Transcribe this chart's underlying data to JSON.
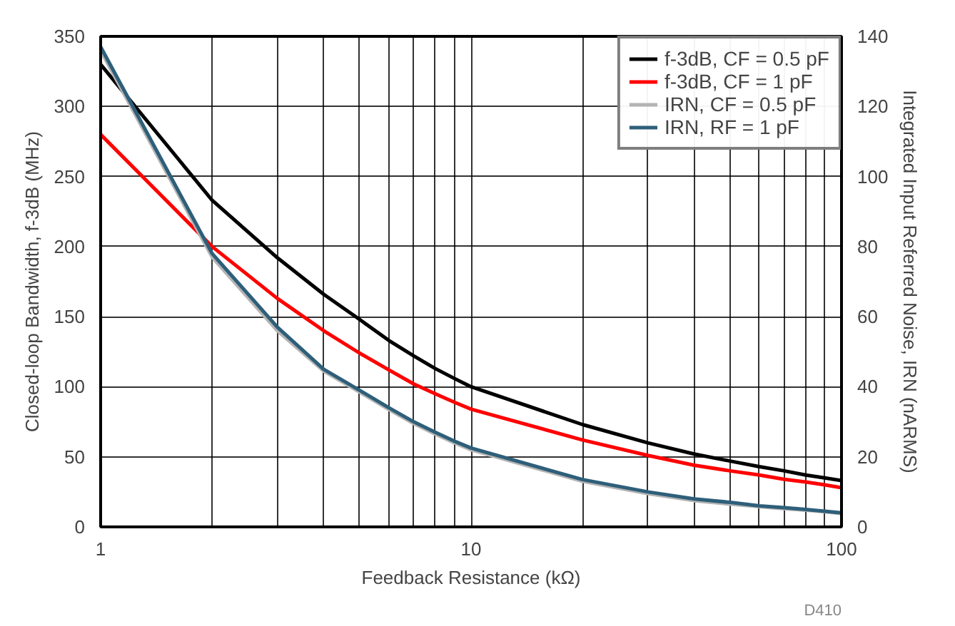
{
  "chart_data": {
    "type": "line",
    "xlabel": "Feedback Resistance (kΩ)",
    "ylabel": "Closed-loop Bandwidth, f-3dB (MHz)",
    "y2label": "Integrated Input Referred Noise, IRN (nARMS)",
    "x": [
      1,
      2,
      3,
      4,
      5,
      6,
      7,
      8,
      9,
      10,
      20,
      30,
      40,
      50,
      60,
      70,
      80,
      90,
      100
    ],
    "series": [
      {
        "name": "f-3dB, CF = 0.5 pF",
        "color": "#000000",
        "values": [
          330,
          233,
          192,
          166,
          148,
          133,
          122,
          113,
          106,
          100,
          73,
          60,
          52,
          47,
          43,
          40,
          37,
          35,
          33
        ]
      },
      {
        "name": "f-3dB, CF = 1 pF",
        "color": "#ff0000",
        "values": [
          280,
          200,
          163,
          140,
          124,
          112,
          102,
          95,
          89,
          84,
          62,
          51,
          44,
          40,
          37,
          34,
          32,
          30,
          28
        ]
      },
      {
        "name": "IRN, CF = 0.5 pF",
        "color": "#b4b4b4",
        "axis": "y2",
        "values": [
          136,
          77,
          56,
          44.5,
          38.5,
          33.5,
          29.5,
          26.5,
          24,
          22,
          13,
          9.5,
          7.5,
          6.5,
          5.8,
          5.2,
          4.8,
          4.3,
          3.8
        ]
      },
      {
        "name": "IRN, RF = 1 pF",
        "color": "#2e5f7a",
        "axis": "y2",
        "values": [
          137,
          78,
          57,
          45,
          39,
          34,
          30,
          27,
          24.5,
          22.5,
          13.5,
          10,
          8,
          7,
          6,
          5.5,
          5,
          4.5,
          4
        ]
      }
    ],
    "log": "x",
    "xlim": [
      1,
      100
    ],
    "xticks": [
      1,
      {
        "value": 2,
        "label": null
      },
      {
        "value": 3,
        "label": null
      },
      {
        "value": 4,
        "label": null
      },
      {
        "value": 5,
        "label": null
      },
      {
        "value": 6,
        "label": null
      },
      {
        "value": 7,
        "label": null
      },
      {
        "value": 8,
        "label": null
      },
      {
        "value": 9,
        "label": null
      },
      10,
      {
        "value": 20,
        "label": null
      },
      {
        "value": 30,
        "label": null
      },
      {
        "value": 40,
        "label": null
      },
      {
        "value": 50,
        "label": null
      },
      {
        "value": 60,
        "label": null
      },
      {
        "value": 70,
        "label": null
      },
      {
        "value": 80,
        "label": null
      },
      {
        "value": 90,
        "label": null
      },
      100
    ],
    "ylim": [
      0,
      350
    ],
    "yticks": [
      0,
      50,
      100,
      150,
      200,
      250,
      300,
      350
    ],
    "y2lim": [
      0,
      140
    ],
    "y2ticks": [
      0,
      20,
      40,
      60,
      80,
      100,
      120,
      140
    ],
    "grid": true,
    "legend": "top right",
    "annotations": [
      "D410"
    ]
  }
}
